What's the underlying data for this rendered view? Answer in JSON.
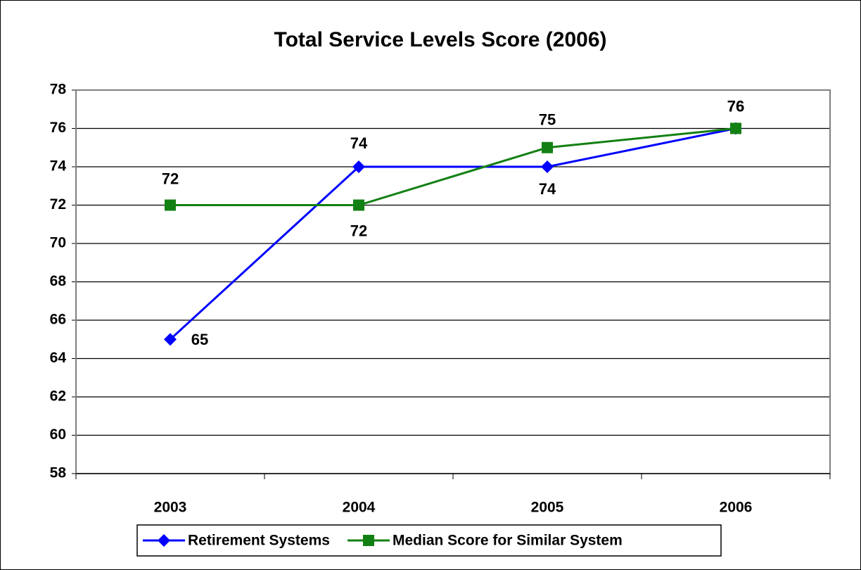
{
  "chart_data": {
    "type": "line",
    "title": "Total Service Levels Score (2006)",
    "categories": [
      "2003",
      "2004",
      "2005",
      "2006"
    ],
    "series": [
      {
        "name": "Retirement Systems",
        "color": "#0000ff",
        "values": [
          65,
          74,
          74,
          76
        ]
      },
      {
        "name": "Median Score for Similar System",
        "color": "#138013",
        "values": [
          72,
          72,
          75,
          76
        ]
      }
    ],
    "ylim": [
      58,
      78
    ],
    "yticks": [
      58,
      60,
      62,
      64,
      66,
      68,
      70,
      72,
      74,
      76,
      78
    ],
    "grid": true,
    "legend": "bottom"
  }
}
